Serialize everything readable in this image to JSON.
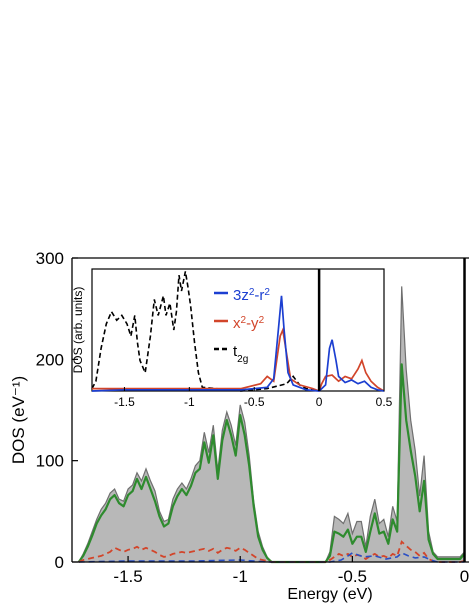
{
  "chart_data": [
    {
      "type": "area",
      "xlabel": "Energy (eV)",
      "ylabel": "DOS (eV⁻¹)",
      "xlim": [
        -1.75,
        0.02
      ],
      "ylim": [
        0,
        300
      ],
      "x_ticks": [
        -1.5,
        -1,
        -0.5,
        0
      ],
      "x_tick_labels": [
        "-1.5",
        "-1",
        "-0.5",
        "0"
      ],
      "y_ticks": [
        0,
        100,
        200,
        300
      ],
      "y_tick_labels": [
        "0",
        "100",
        "200",
        "300"
      ],
      "grid": false,
      "vertical_lines": [
        0
      ],
      "series": [
        {
          "color": "#a9a9a9",
          "x": [
            -1.72,
            -1.7,
            -1.68,
            -1.66,
            -1.64,
            -1.62,
            -1.6,
            -1.58,
            -1.56,
            -1.54,
            -1.52,
            -1.5,
            -1.48,
            -1.46,
            -1.44,
            -1.42,
            -1.4,
            -1.38,
            -1.36,
            -1.34,
            -1.32,
            -1.3,
            -1.28,
            -1.26,
            -1.24,
            -1.22,
            -1.2,
            -1.18,
            -1.16,
            -1.14,
            -1.12,
            -1.1,
            -1.08,
            -1.06,
            -1.04,
            -1.02,
            -1.0,
            -0.98,
            -0.96,
            -0.94,
            -0.92,
            -0.9,
            -0.88,
            -0.86,
            -0.62,
            -0.6,
            -0.58,
            -0.56,
            -0.54,
            -0.52,
            -0.5,
            -0.48,
            -0.46,
            -0.44,
            -0.42,
            -0.4,
            -0.38,
            -0.36,
            -0.34,
            -0.32,
            -0.3,
            -0.28,
            -0.26,
            -0.24,
            -0.22,
            -0.2,
            -0.18,
            -0.16,
            -0.14,
            -0.12,
            -0.02,
            0.0
          ],
          "values": [
            0,
            8,
            18,
            30,
            42,
            52,
            58,
            68,
            72,
            62,
            60,
            72,
            76,
            88,
            80,
            92,
            80,
            70,
            50,
            40,
            42,
            62,
            72,
            78,
            72,
            82,
            95,
            100,
            128,
            108,
            135,
            90,
            130,
            148,
            135,
            115,
            155,
            138,
            105,
            60,
            30,
            15,
            5,
            0,
            0,
            10,
            45,
            42,
            38,
            48,
            28,
            40,
            40,
            15,
            45,
            62,
            38,
            42,
            25,
            55,
            40,
            272,
            190,
            140,
            110,
            65,
            105,
            30,
            10,
            5,
            5,
            10
          ]
        },
        {
          "color": "#2e8b2e",
          "x": [
            -1.72,
            -1.7,
            -1.68,
            -1.66,
            -1.64,
            -1.62,
            -1.6,
            -1.58,
            -1.56,
            -1.54,
            -1.52,
            -1.5,
            -1.48,
            -1.46,
            -1.44,
            -1.42,
            -1.4,
            -1.38,
            -1.36,
            -1.34,
            -1.32,
            -1.3,
            -1.28,
            -1.26,
            -1.24,
            -1.22,
            -1.2,
            -1.18,
            -1.16,
            -1.14,
            -1.12,
            -1.1,
            -1.08,
            -1.06,
            -1.04,
            -1.02,
            -1.0,
            -0.98,
            -0.96,
            -0.94,
            -0.92,
            -0.9,
            -0.88,
            -0.86,
            -0.62,
            -0.6,
            -0.58,
            -0.56,
            -0.54,
            -0.52,
            -0.5,
            -0.48,
            -0.46,
            -0.44,
            -0.42,
            -0.4,
            -0.38,
            -0.36,
            -0.34,
            -0.32,
            -0.3,
            -0.28,
            -0.26,
            -0.24,
            -0.22,
            -0.2,
            -0.18,
            -0.16,
            -0.14,
            -0.12,
            -0.02,
            0.0
          ],
          "values": [
            0,
            6,
            15,
            26,
            38,
            46,
            52,
            62,
            66,
            58,
            55,
            66,
            70,
            82,
            72,
            84,
            72,
            60,
            45,
            35,
            38,
            55,
            65,
            72,
            66,
            75,
            88,
            92,
            118,
            98,
            125,
            82,
            120,
            140,
            125,
            105,
            145,
            125,
            95,
            55,
            25,
            12,
            4,
            0,
            0,
            6,
            30,
            28,
            25,
            32,
            18,
            25,
            25,
            10,
            30,
            48,
            28,
            30,
            18,
            42,
            30,
            195,
            140,
            110,
            85,
            50,
            80,
            22,
            8,
            3,
            3,
            8
          ]
        },
        {
          "color": "#d2452a",
          "x": [
            -1.72,
            -1.7,
            -1.68,
            -1.66,
            -1.64,
            -1.62,
            -1.6,
            -1.58,
            -1.56,
            -1.54,
            -1.52,
            -1.5,
            -1.48,
            -1.46,
            -1.44,
            -1.42,
            -1.4,
            -1.38,
            -1.36,
            -1.34,
            -1.32,
            -1.3,
            -1.28,
            -1.26,
            -1.24,
            -1.22,
            -1.2,
            -1.18,
            -1.16,
            -1.14,
            -1.12,
            -1.1,
            -1.08,
            -1.06,
            -1.04,
            -1.02,
            -1.0,
            -0.98,
            -0.96,
            -0.94,
            -0.92,
            -0.9,
            -0.88,
            -0.86,
            -0.62,
            -0.6,
            -0.58,
            -0.56,
            -0.54,
            -0.52,
            -0.5,
            -0.48,
            -0.46,
            -0.44,
            -0.42,
            -0.4,
            -0.38,
            -0.36,
            -0.34,
            -0.32,
            -0.3,
            -0.28,
            -0.26,
            -0.24,
            -0.22,
            -0.2,
            -0.18,
            -0.16,
            -0.14,
            -0.12,
            -0.02,
            0.0
          ],
          "values": [
            0,
            2,
            3,
            4,
            5,
            6,
            8,
            10,
            14,
            12,
            10,
            12,
            13,
            15,
            12,
            14,
            12,
            10,
            7,
            5,
            6,
            8,
            9,
            10,
            9,
            10,
            11,
            12,
            13,
            11,
            13,
            9,
            12,
            14,
            13,
            11,
            14,
            12,
            9,
            6,
            3,
            2,
            1,
            0,
            0,
            2,
            5,
            8,
            6,
            8,
            5,
            7,
            6,
            3,
            6,
            8,
            5,
            6,
            4,
            8,
            6,
            20,
            16,
            12,
            10,
            6,
            9,
            3,
            1,
            0,
            0,
            1
          ]
        },
        {
          "color": "#2a4fc4",
          "x": [
            -1.72,
            -1.5,
            -1.2,
            -1.0,
            -0.88,
            -0.6,
            -0.55,
            -0.52,
            -0.5,
            -0.45,
            -0.4,
            -0.35,
            -0.3,
            -0.28,
            -0.25,
            -0.22,
            -0.18,
            -0.15,
            -0.12,
            0.0
          ],
          "values": [
            0,
            1,
            1,
            2,
            0,
            0,
            2,
            6,
            9,
            5,
            6,
            3,
            5,
            9,
            6,
            4,
            5,
            2,
            0,
            0
          ]
        }
      ],
      "inset": {
        "type": "line",
        "ylabel": "DOS (arb. units)",
        "xlim": [
          -1.75,
          0.5
        ],
        "ylim": [
          0,
          1
        ],
        "x_ticks": [
          -1.5,
          -1,
          -0.5,
          0,
          0.5
        ],
        "x_tick_labels": [
          "-1.5",
          "-1",
          "-0.5",
          "0",
          "0.5"
        ],
        "vertical_lines": [
          0
        ],
        "legend_position": "top-center",
        "series": [
          {
            "name": "3z²-r²",
            "color": "#1c3fd1",
            "x": [
              -1.75,
              -1.5,
              -1.0,
              -0.6,
              -0.5,
              -0.4,
              -0.35,
              -0.31,
              -0.29,
              -0.27,
              -0.24,
              -0.2,
              -0.1,
              0.0,
              0.02,
              0.05,
              0.08,
              0.1,
              0.13,
              0.15,
              0.2,
              0.25,
              0.3,
              0.35,
              0.4,
              0.45,
              0.5
            ],
            "values": [
              0.0,
              0.01,
              0.01,
              0.01,
              0.02,
              0.03,
              0.1,
              0.55,
              0.78,
              0.5,
              0.15,
              0.05,
              0.01,
              0.0,
              0.02,
              0.05,
              0.35,
              0.42,
              0.25,
              0.12,
              0.07,
              0.09,
              0.06,
              0.08,
              0.03,
              0.01,
              0.0
            ]
          },
          {
            "name": "x²-y²",
            "color": "#d2452a",
            "x": [
              -1.75,
              -1.5,
              -1.0,
              -0.6,
              -0.45,
              -0.4,
              -0.35,
              -0.3,
              -0.28,
              -0.25,
              -0.22,
              -0.15,
              -0.05,
              0.0,
              0.02,
              0.05,
              0.1,
              0.15,
              0.2,
              0.25,
              0.3,
              0.33,
              0.36,
              0.4,
              0.45,
              0.5
            ],
            "values": [
              0.02,
              0.02,
              0.02,
              0.02,
              0.06,
              0.12,
              0.08,
              0.45,
              0.5,
              0.3,
              0.1,
              0.05,
              0.02,
              0.0,
              0.06,
              0.12,
              0.13,
              0.08,
              0.12,
              0.1,
              0.18,
              0.25,
              0.15,
              0.08,
              0.03,
              0.0
            ]
          },
          {
            "name": "t2g",
            "color": "#000000",
            "x": [
              -1.75,
              -1.72,
              -1.68,
              -1.64,
              -1.6,
              -1.56,
              -1.52,
              -1.48,
              -1.45,
              -1.42,
              -1.4,
              -1.38,
              -1.34,
              -1.3,
              -1.27,
              -1.24,
              -1.2,
              -1.18,
              -1.15,
              -1.12,
              -1.1,
              -1.08,
              -1.06,
              -1.03,
              -1.01,
              -0.99,
              -0.96,
              -0.93,
              -0.9,
              -0.6,
              -0.4,
              -0.25,
              -0.2,
              -0.15,
              -0.1,
              -0.05,
              0.0
            ],
            "values": [
              0.02,
              0.08,
              0.35,
              0.55,
              0.65,
              0.58,
              0.62,
              0.55,
              0.45,
              0.62,
              0.4,
              0.25,
              0.15,
              0.45,
              0.75,
              0.62,
              0.78,
              0.62,
              0.72,
              0.5,
              0.65,
              0.95,
              0.82,
              0.98,
              0.85,
              0.7,
              0.4,
              0.15,
              0.03,
              0.0,
              0.02,
              0.06,
              0.12,
              0.05,
              0.02,
              0.01,
              0.0
            ]
          }
        ]
      }
    }
  ]
}
